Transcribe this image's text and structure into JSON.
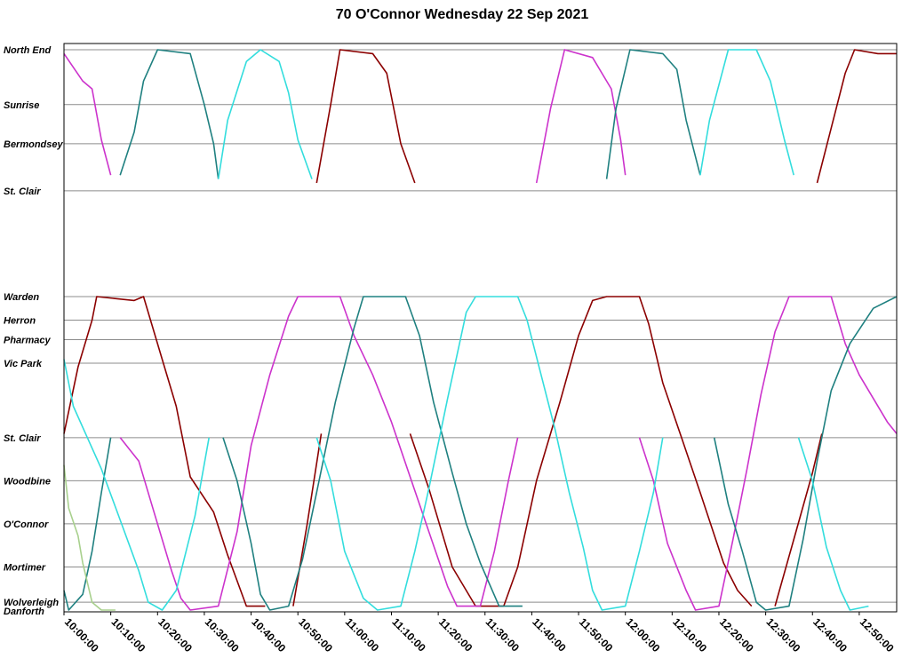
{
  "chart_data": {
    "type": "line",
    "title": "70 O'Connor Wednesday 22 Sep 2021",
    "xlabel": "",
    "ylabel": "",
    "x_axis": {
      "start": "10:00:00",
      "end": "12:58:00",
      "tick_step_minutes": 10,
      "tick_labels": [
        "10:00:00",
        "10:10:00",
        "10:20:00",
        "10:30:00",
        "10:40:00",
        "10:50:00",
        "11:00:00",
        "11:10:00",
        "11:20:00",
        "11:30:00",
        "11:40:00",
        "11:50:00",
        "12:00:00",
        "12:10:00",
        "12:20:00",
        "12:30:00",
        "12:40:00",
        "12:50:00"
      ]
    },
    "y_axis": {
      "unit": "distance along route (km)",
      "range": [
        0,
        19.3
      ],
      "stops": [
        {
          "name": "North End",
          "km": 19.3
        },
        {
          "name": "Sunrise",
          "km": 17.9
        },
        {
          "name": "Bermondsey",
          "km": 16.9
        },
        {
          "name": "St. Clair",
          "km": 15.7
        },
        {
          "name": "Warden",
          "km": 13.0
        },
        {
          "name": "Herron",
          "km": 12.4
        },
        {
          "name": "Pharmacy",
          "km": 11.9
        },
        {
          "name": "Vic Park",
          "km": 11.3
        },
        {
          "name": "St. Clair",
          "km": 9.4
        },
        {
          "name": "Woodbine",
          "km": 8.3
        },
        {
          "name": "O'Connor",
          "km": 7.2
        },
        {
          "name": "Mortimer",
          "km": 6.1
        },
        {
          "name": "Wolverleigh",
          "km": 5.2
        },
        {
          "name": "Danforth",
          "km": 5.0
        }
      ]
    },
    "grid": true,
    "legend": "none",
    "series": [
      {
        "color": "#8b0000",
        "points": [
          [
            "10:00",
            9.5
          ],
          [
            "10:03",
            11.2
          ],
          [
            "10:06",
            12.4
          ],
          [
            "10:07",
            13.0
          ],
          [
            "10:15",
            12.9
          ],
          [
            "10:17",
            13.0
          ],
          [
            "10:21",
            11.4
          ],
          [
            "10:24",
            10.2
          ],
          [
            "10:27",
            8.4
          ],
          [
            "10:32",
            7.5
          ],
          [
            "10:35",
            6.4
          ],
          [
            "10:39",
            5.1
          ],
          [
            "10:43",
            5.1
          ]
        ]
      },
      {
        "color": "#8b0000",
        "points": [
          [
            "10:49",
            5.1
          ],
          [
            "10:52",
            7.2
          ],
          [
            "10:55",
            9.5
          ]
        ]
      },
      {
        "color": "#8b0000",
        "points": [
          [
            "10:54",
            15.9
          ],
          [
            "10:57",
            17.9
          ],
          [
            "10:59",
            19.3
          ],
          [
            "11:06",
            19.2
          ],
          [
            "11:09",
            18.7
          ],
          [
            "11:12",
            16.9
          ],
          [
            "11:15",
            15.9
          ]
        ]
      },
      {
        "color": "#8b0000",
        "points": [
          [
            "11:14",
            9.5
          ],
          [
            "11:18",
            8.1
          ],
          [
            "11:23",
            6.1
          ],
          [
            "11:28",
            5.1
          ],
          [
            "11:34",
            5.1
          ],
          [
            "11:37",
            6.1
          ],
          [
            "11:41",
            8.3
          ],
          [
            "11:46",
            10.3
          ],
          [
            "11:50",
            12.0
          ],
          [
            "11:53",
            12.9
          ],
          [
            "11:56",
            13.0
          ],
          [
            "12:03",
            13.0
          ],
          [
            "12:05",
            12.3
          ],
          [
            "12:08",
            10.8
          ],
          [
            "12:12",
            9.4
          ],
          [
            "12:16",
            8.0
          ],
          [
            "12:21",
            6.2
          ],
          [
            "12:24",
            5.5
          ],
          [
            "12:27",
            5.1
          ]
        ]
      },
      {
        "color": "#8b0000",
        "points": [
          [
            "12:32",
            5.1
          ],
          [
            "12:36",
            6.8
          ],
          [
            "12:40",
            8.5
          ],
          [
            "12:42",
            9.5
          ]
        ]
      },
      {
        "color": "#8b0000",
        "points": [
          [
            "12:41",
            15.9
          ],
          [
            "12:44",
            17.3
          ],
          [
            "12:47",
            18.7
          ],
          [
            "12:49",
            19.3
          ],
          [
            "12:54",
            19.2
          ],
          [
            "12:58",
            19.2
          ]
        ]
      },
      {
        "color": "#cc33cc",
        "points": [
          [
            "10:00",
            19.2
          ],
          [
            "10:04",
            18.5
          ],
          [
            "10:06",
            18.3
          ],
          [
            "10:08",
            17.0
          ],
          [
            "10:10",
            16.1
          ]
        ]
      },
      {
        "color": "#cc33cc",
        "points": [
          [
            "10:12",
            9.4
          ],
          [
            "10:16",
            8.8
          ],
          [
            "10:19",
            7.6
          ],
          [
            "10:23",
            6.0
          ],
          [
            "10:25",
            5.3
          ],
          [
            "10:27",
            5.0
          ],
          [
            "10:33",
            5.1
          ],
          [
            "10:37",
            7.0
          ],
          [
            "10:40",
            9.2
          ],
          [
            "10:44",
            11.0
          ],
          [
            "10:48",
            12.5
          ],
          [
            "10:50",
            13.0
          ],
          [
            "10:59",
            13.0
          ],
          [
            "11:02",
            12.0
          ],
          [
            "11:06",
            11.0
          ],
          [
            "11:10",
            9.8
          ],
          [
            "11:14",
            8.4
          ],
          [
            "11:18",
            7.0
          ],
          [
            "11:22",
            5.6
          ],
          [
            "11:24",
            5.1
          ],
          [
            "11:29",
            5.1
          ],
          [
            "11:32",
            6.5
          ],
          [
            "11:35",
            8.3
          ],
          [
            "11:37",
            9.4
          ]
        ]
      },
      {
        "color": "#cc33cc",
        "points": [
          [
            "11:41",
            15.9
          ],
          [
            "11:44",
            17.8
          ],
          [
            "11:47",
            19.3
          ],
          [
            "11:53",
            19.1
          ],
          [
            "11:57",
            18.3
          ],
          [
            "11:59",
            17.0
          ],
          [
            "12:00",
            16.1
          ]
        ]
      },
      {
        "color": "#cc33cc",
        "points": [
          [
            "12:03",
            9.4
          ],
          [
            "12:06",
            8.3
          ],
          [
            "12:09",
            6.7
          ],
          [
            "12:13",
            5.5
          ],
          [
            "12:15",
            5.0
          ],
          [
            "12:20",
            5.1
          ],
          [
            "12:23",
            6.8
          ],
          [
            "12:26",
            8.6
          ],
          [
            "12:29",
            10.5
          ],
          [
            "12:32",
            12.1
          ],
          [
            "12:35",
            13.0
          ],
          [
            "12:44",
            13.0
          ],
          [
            "12:47",
            11.8
          ],
          [
            "12:50",
            11.0
          ],
          [
            "12:53",
            10.4
          ],
          [
            "12:56",
            9.8
          ],
          [
            "12:58",
            9.5
          ]
        ]
      },
      {
        "color": "#1f8080",
        "points": [
          [
            "10:00",
            5.5
          ],
          [
            "10:01",
            5.0
          ],
          [
            "10:04",
            5.4
          ],
          [
            "10:06",
            6.5
          ],
          [
            "10:08",
            8.0
          ],
          [
            "10:10",
            9.4
          ]
        ]
      },
      {
        "color": "#1f8080",
        "points": [
          [
            "10:12",
            16.1
          ],
          [
            "10:15",
            17.2
          ],
          [
            "10:17",
            18.5
          ],
          [
            "10:20",
            19.3
          ],
          [
            "10:27",
            19.2
          ],
          [
            "10:30",
            17.9
          ],
          [
            "10:32",
            16.9
          ],
          [
            "10:33",
            16.0
          ]
        ]
      },
      {
        "color": "#1f8080",
        "points": [
          [
            "10:34",
            9.4
          ],
          [
            "10:37",
            8.3
          ],
          [
            "10:40",
            6.7
          ],
          [
            "10:42",
            5.4
          ],
          [
            "10:44",
            5.0
          ],
          [
            "10:48",
            5.1
          ],
          [
            "10:51",
            6.3
          ],
          [
            "10:54",
            8.0
          ],
          [
            "10:58",
            10.3
          ],
          [
            "11:02",
            12.2
          ],
          [
            "11:04",
            13.0
          ],
          [
            "11:13",
            13.0
          ],
          [
            "11:16",
            12.0
          ],
          [
            "11:19",
            10.3
          ],
          [
            "11:23",
            8.5
          ],
          [
            "11:26",
            7.2
          ],
          [
            "11:29",
            6.2
          ],
          [
            "11:33",
            5.1
          ],
          [
            "11:38",
            5.1
          ]
        ]
      },
      {
        "color": "#1f8080",
        "points": [
          [
            "11:56",
            16.0
          ],
          [
            "11:58",
            17.8
          ],
          [
            "12:01",
            19.3
          ],
          [
            "12:08",
            19.2
          ],
          [
            "12:11",
            18.8
          ],
          [
            "12:13",
            17.5
          ],
          [
            "12:16",
            16.1
          ]
        ]
      },
      {
        "color": "#1f8080",
        "points": [
          [
            "12:19",
            9.4
          ],
          [
            "12:22",
            7.7
          ],
          [
            "12:25",
            6.5
          ],
          [
            "12:28",
            5.2
          ],
          [
            "12:30",
            5.0
          ],
          [
            "12:35",
            5.1
          ],
          [
            "12:38",
            6.8
          ],
          [
            "12:41",
            8.8
          ],
          [
            "12:44",
            10.6
          ],
          [
            "12:48",
            11.8
          ],
          [
            "12:53",
            12.7
          ],
          [
            "12:58",
            13.0
          ]
        ]
      },
      {
        "color": "#33dddd",
        "points": [
          [
            "10:00",
            11.4
          ],
          [
            "10:02",
            10.2
          ],
          [
            "10:05",
            9.4
          ],
          [
            "10:08",
            8.6
          ],
          [
            "10:12",
            7.3
          ],
          [
            "10:16",
            6.0
          ],
          [
            "10:18",
            5.2
          ],
          [
            "10:21",
            5.0
          ],
          [
            "10:24",
            5.5
          ],
          [
            "10:28",
            7.4
          ],
          [
            "10:31",
            9.4
          ]
        ]
      },
      {
        "color": "#33dddd",
        "points": [
          [
            "10:33",
            16.0
          ],
          [
            "10:35",
            17.5
          ],
          [
            "10:39",
            19.0
          ],
          [
            "10:42",
            19.3
          ],
          [
            "10:46",
            19.0
          ],
          [
            "10:48",
            18.2
          ],
          [
            "10:50",
            17.0
          ],
          [
            "10:53",
            16.0
          ]
        ]
      },
      {
        "color": "#33dddd",
        "points": [
          [
            "10:54",
            9.4
          ],
          [
            "10:57",
            8.3
          ],
          [
            "11:00",
            6.5
          ],
          [
            "11:04",
            5.3
          ],
          [
            "11:07",
            5.0
          ],
          [
            "11:12",
            5.1
          ],
          [
            "11:15",
            6.5
          ],
          [
            "11:18",
            8.1
          ],
          [
            "11:22",
            10.4
          ],
          [
            "11:26",
            12.6
          ],
          [
            "11:28",
            13.0
          ],
          [
            "11:37",
            13.0
          ],
          [
            "11:39",
            12.4
          ],
          [
            "11:42",
            11.0
          ],
          [
            "11:45",
            9.6
          ],
          [
            "11:48",
            8.0
          ],
          [
            "11:51",
            6.6
          ],
          [
            "11:53",
            5.5
          ],
          [
            "11:55",
            5.0
          ],
          [
            "12:00",
            5.1
          ],
          [
            "12:03",
            6.5
          ],
          [
            "12:06",
            8.0
          ],
          [
            "12:08",
            9.4
          ]
        ]
      },
      {
        "color": "#33dddd",
        "points": [
          [
            "12:16",
            16.1
          ],
          [
            "12:18",
            17.5
          ],
          [
            "12:22",
            19.3
          ],
          [
            "12:28",
            19.3
          ],
          [
            "12:31",
            18.5
          ],
          [
            "12:34",
            17.0
          ],
          [
            "12:36",
            16.1
          ]
        ]
      },
      {
        "color": "#33dddd",
        "points": [
          [
            "12:37",
            9.4
          ],
          [
            "12:40",
            8.3
          ],
          [
            "12:43",
            6.6
          ],
          [
            "12:46",
            5.5
          ],
          [
            "12:48",
            5.0
          ],
          [
            "12:52",
            5.1
          ]
        ]
      },
      {
        "color": "#a8d08d",
        "points": [
          [
            "10:00",
            8.7
          ],
          [
            "10:01",
            7.6
          ],
          [
            "10:03",
            6.9
          ],
          [
            "10:04",
            6.2
          ],
          [
            "10:06",
            5.2
          ],
          [
            "10:08",
            5.0
          ],
          [
            "10:11",
            5.0
          ]
        ]
      }
    ]
  }
}
